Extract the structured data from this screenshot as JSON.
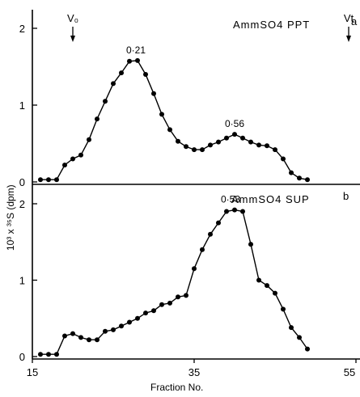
{
  "chart_data": [
    {
      "type": "line",
      "panel_label": "AmmSO4 PPT",
      "corner_label": "a",
      "x": [
        16,
        17,
        18,
        19,
        20,
        21,
        22,
        23,
        24,
        25,
        26,
        27,
        28,
        29,
        30,
        31,
        32,
        33,
        34,
        35,
        36,
        37,
        38,
        39,
        40,
        41,
        42,
        43,
        44,
        45,
        46,
        47,
        48,
        49
      ],
      "series": [
        {
          "values": [
            0.03,
            0.03,
            0.03,
            0.22,
            0.3,
            0.35,
            0.55,
            0.82,
            1.05,
            1.28,
            1.42,
            1.57,
            1.58,
            1.4,
            1.15,
            0.88,
            0.68,
            0.53,
            0.46,
            0.42,
            0.42,
            0.48,
            0.52,
            0.57,
            0.62,
            0.57,
            0.52,
            0.48,
            0.47,
            0.42,
            0.3,
            0.12,
            0.05,
            0.03
          ]
        }
      ],
      "xlim": [
        15,
        55
      ],
      "ylim": [
        0,
        2
      ],
      "yticks": [
        "0",
        "1",
        "2"
      ],
      "peak_annotations": [
        {
          "x": 27.8,
          "y": 1.58,
          "label": "0·21"
        },
        {
          "x": 40,
          "y": 0.62,
          "label": "0·56"
        }
      ],
      "markers": [
        {
          "x": 20,
          "label": "V₀"
        },
        {
          "x": 54.8,
          "label": "Vt"
        }
      ]
    },
    {
      "type": "line",
      "panel_label": "AmmSO4 SUP",
      "corner_label": "b",
      "x": [
        16,
        17,
        18,
        19,
        20,
        21,
        22,
        23,
        24,
        25,
        26,
        27,
        28,
        29,
        30,
        31,
        32,
        33,
        34,
        35,
        36,
        37,
        38,
        39,
        40,
        41,
        42,
        43,
        44,
        45,
        46,
        47,
        48,
        49
      ],
      "series": [
        {
          "values": [
            0.03,
            0.03,
            0.03,
            0.27,
            0.3,
            0.25,
            0.22,
            0.22,
            0.33,
            0.35,
            0.4,
            0.45,
            0.5,
            0.57,
            0.6,
            0.68,
            0.7,
            0.78,
            0.8,
            1.15,
            1.4,
            1.6,
            1.75,
            1.9,
            1.92,
            1.9,
            1.47,
            1.0,
            0.93,
            0.83,
            0.62,
            0.38,
            0.25,
            0.1
          ]
        }
      ],
      "xlim": [
        15,
        55
      ],
      "ylim": [
        0,
        2
      ],
      "yticks": [
        "0",
        "1",
        "2"
      ],
      "peak_annotations": [
        {
          "x": 39.5,
          "y": 1.92,
          "label": "0·53"
        }
      ]
    }
  ],
  "shared": {
    "xlabel": "Fraction   No.",
    "ylabel": "10³ x ³⁵S   (dpm)",
    "xticks": [
      "15",
      "35",
      "55"
    ]
  }
}
